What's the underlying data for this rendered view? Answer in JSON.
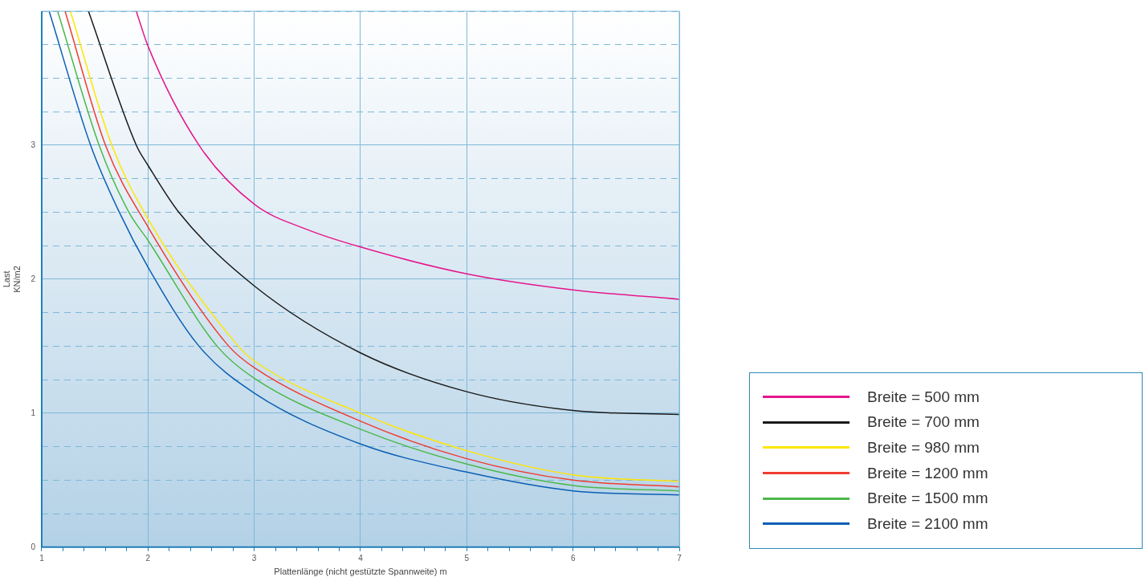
{
  "chart_data": {
    "type": "line",
    "xlabel": "Plattenlänge (nicht gestützte Spannweite) m",
    "ylabel": "Last\nKN/m2",
    "xlim": [
      1,
      7
    ],
    "ylim": [
      0,
      4
    ],
    "xticks": [
      1,
      {
        "value": 1.2,
        "label": null
      },
      {
        "value": 1.4,
        "label": null
      },
      {
        "value": 1.6,
        "label": null
      },
      {
        "value": 1.8,
        "label": null
      },
      2,
      {
        "value": 2.2,
        "label": null
      },
      {
        "value": 2.4,
        "label": null
      },
      {
        "value": 2.6,
        "label": null
      },
      {
        "value": 2.8,
        "label": null
      },
      3,
      {
        "value": 3.2,
        "label": null
      },
      {
        "value": 3.4,
        "label": null
      },
      {
        "value": 3.6,
        "label": null
      },
      {
        "value": 3.8,
        "label": null
      },
      4,
      {
        "value": 4.2,
        "label": null
      },
      {
        "value": 4.4,
        "label": null
      },
      {
        "value": 4.6,
        "label": null
      },
      {
        "value": 4.8,
        "label": null
      },
      5,
      {
        "value": 5.2,
        "label": null
      },
      {
        "value": 5.4,
        "label": null
      },
      {
        "value": 5.6,
        "label": null
      },
      {
        "value": 5.8,
        "label": null
      },
      6,
      {
        "value": 6.2,
        "label": null
      },
      {
        "value": 6.4,
        "label": null
      },
      {
        "value": 6.6,
        "label": null
      },
      {
        "value": 6.8,
        "label": null
      },
      7
    ],
    "yticks": [
      0,
      {
        "value": 0.25,
        "label": null
      },
      {
        "value": 0.5,
        "label": null
      },
      {
        "value": 0.75,
        "label": null
      },
      1,
      {
        "value": 1.25,
        "label": null
      },
      {
        "value": 1.5,
        "label": null
      },
      {
        "value": 1.75,
        "label": null
      },
      2,
      {
        "value": 2.25,
        "label": null
      },
      {
        "value": 2.5,
        "label": null
      },
      {
        "value": 2.75,
        "label": null
      },
      3,
      {
        "value": 3.25,
        "label": null
      },
      {
        "value": 3.5,
        "label": null
      },
      {
        "value": 3.75,
        "label": null
      },
      {
        "value": 4,
        "label": null
      }
    ],
    "grid": true,
    "legend": "bottom right",
    "marker": "none",
    "line_style": "solid",
    "series": [
      {
        "name": "Breite = 500 mm",
        "color": "#e6168c",
        "x": [
          1.89,
          2,
          2.48,
          3,
          3.5,
          4,
          5,
          6,
          7
        ],
        "values": [
          4,
          3.74,
          3,
          2.56,
          2.37,
          2.24,
          2.04,
          1.92,
          1.85
        ]
      },
      {
        "name": "Breite = 700 mm",
        "color": "#1a1a1a",
        "x": [
          1.44,
          1.89,
          2,
          2.29,
          3,
          4,
          5,
          6,
          7
        ],
        "values": [
          4,
          3,
          2.85,
          2.5,
          1.95,
          1.45,
          1.16,
          1.02,
          0.99
        ]
      },
      {
        "name": "Breite = 980 mm",
        "color": "#ffe600",
        "x": [
          1.27,
          1.66,
          2,
          2.85,
          3,
          4,
          5,
          6,
          7
        ],
        "values": [
          4,
          3,
          2.45,
          1.5,
          1.39,
          1,
          0.72,
          0.54,
          0.49
        ]
      },
      {
        "name": "Breite = 1200 mm",
        "color": "#f03c32",
        "x": [
          1.22,
          1.6,
          2,
          2.76,
          3,
          4,
          5,
          6,
          7
        ],
        "values": [
          4,
          3,
          2.39,
          1.5,
          1.34,
          0.94,
          0.66,
          0.5,
          0.45
        ]
      },
      {
        "name": "Breite = 1500 mm",
        "color": "#4cb84a",
        "x": [
          1.15,
          1.54,
          1.82,
          2,
          2.65,
          3,
          4,
          5,
          6,
          7
        ],
        "values": [
          4,
          3,
          2.5,
          2.29,
          1.5,
          1.26,
          0.88,
          0.62,
          0.46,
          0.42
        ]
      },
      {
        "name": "Breite = 2100 mm",
        "color": "#0a5fb4",
        "x": [
          1.07,
          1.46,
          1.73,
          2,
          2.48,
          3,
          4,
          5,
          6,
          7
        ],
        "values": [
          4,
          3,
          2.5,
          2.09,
          1.5,
          1.15,
          0.77,
          0.56,
          0.42,
          0.39
        ]
      }
    ]
  }
}
